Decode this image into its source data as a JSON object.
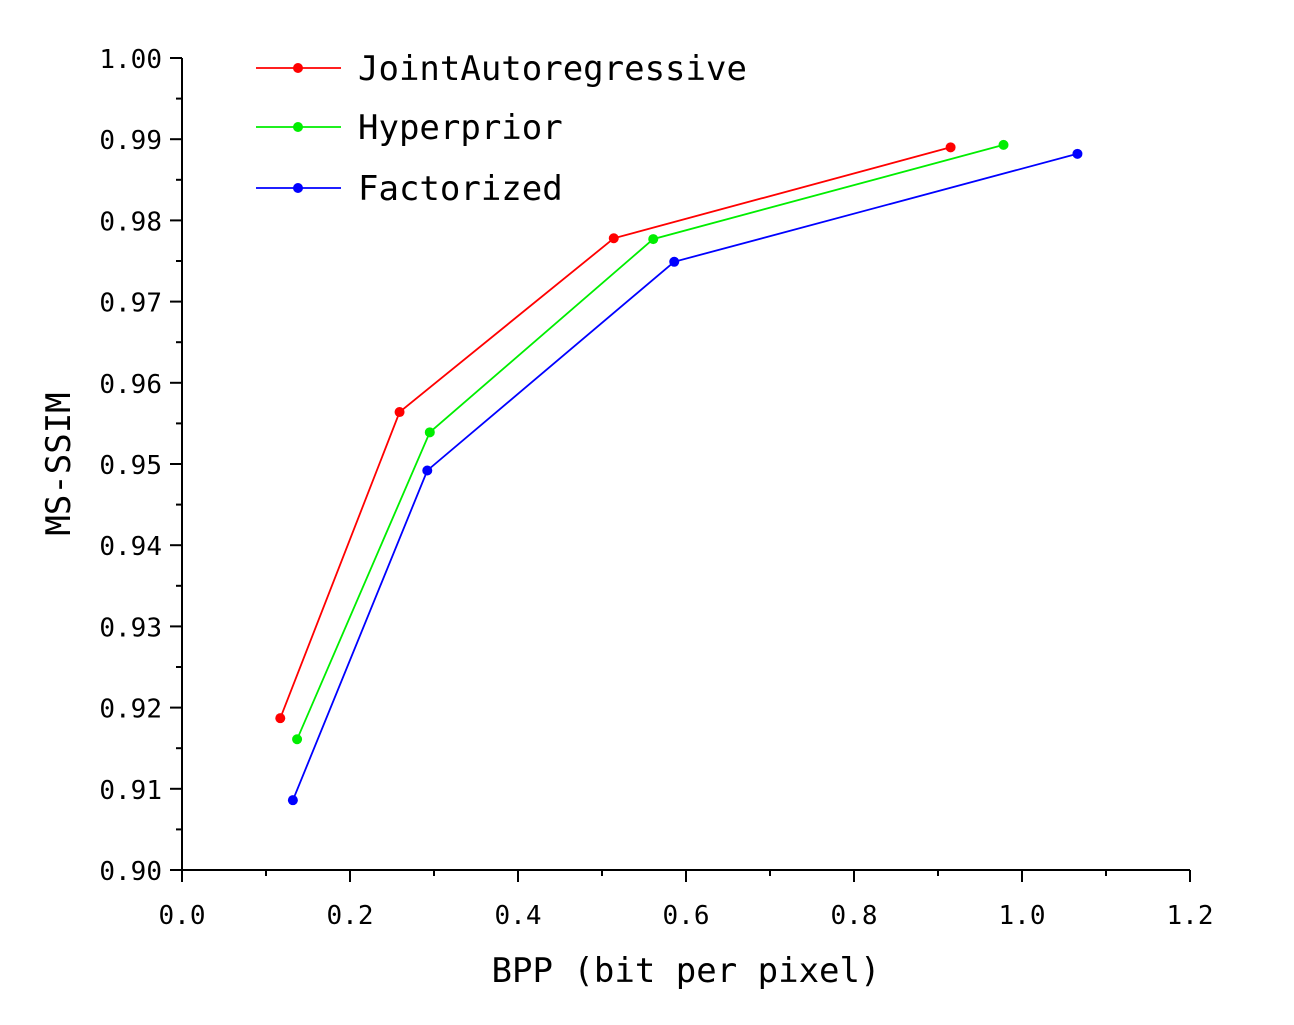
{
  "chart_data": {
    "type": "line",
    "title": "",
    "xlabel": "BPP (bit per pixel)",
    "ylabel": "MS-SSIM",
    "xlim": [
      0.0,
      1.2
    ],
    "ylim": [
      0.9,
      1.0
    ],
    "x_ticks": [
      "0.0",
      "0.2",
      "0.4",
      "0.6",
      "0.8",
      "1.0",
      "1.2"
    ],
    "y_ticks": [
      "0.90",
      "0.91",
      "0.92",
      "0.93",
      "0.94",
      "0.95",
      "0.96",
      "0.97",
      "0.98",
      "0.99",
      "1.00"
    ],
    "grid": false,
    "legend_position": "top-left",
    "series": [
      {
        "name": "JointAutoregressive",
        "color": "#ff0000",
        "points": [
          {
            "x": 0.117,
            "y": 0.9187
          },
          {
            "x": 0.259,
            "y": 0.9564
          },
          {
            "x": 0.514,
            "y": 0.9778
          },
          {
            "x": 0.915,
            "y": 0.989
          }
        ]
      },
      {
        "name": "Hyperprior",
        "color": "#00ee00",
        "points": [
          {
            "x": 0.137,
            "y": 0.9161
          },
          {
            "x": 0.295,
            "y": 0.9539
          },
          {
            "x": 0.561,
            "y": 0.9777
          },
          {
            "x": 0.978,
            "y": 0.9893
          }
        ]
      },
      {
        "name": "Factorized",
        "color": "#0000ff",
        "points": [
          {
            "x": 0.132,
            "y": 0.9086
          },
          {
            "x": 0.292,
            "y": 0.9492
          },
          {
            "x": 0.586,
            "y": 0.9749
          },
          {
            "x": 1.066,
            "y": 0.9882
          }
        ]
      }
    ]
  }
}
